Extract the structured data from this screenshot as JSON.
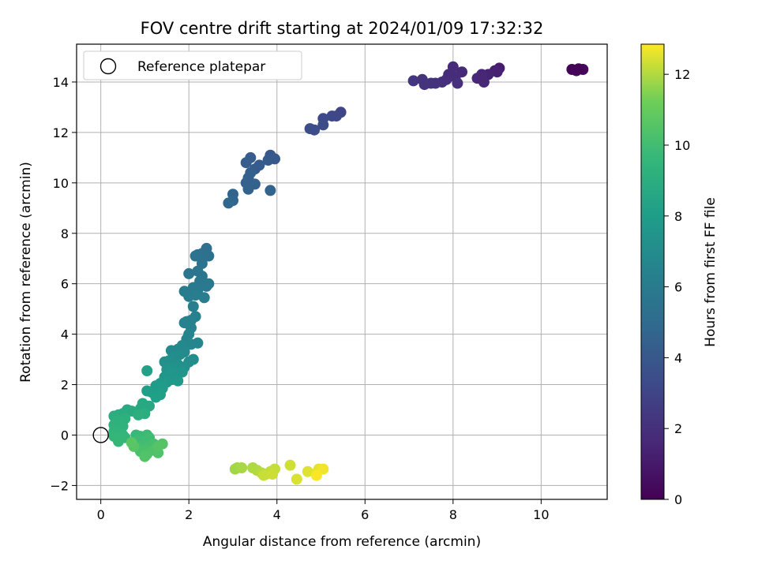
{
  "chart_data": {
    "type": "scatter",
    "title": "FOV centre drift starting at 2024/01/09 17:32:32",
    "xlabel": "Angular distance from reference (arcmin)",
    "ylabel": "Rotation from reference (arcmin)",
    "xlim": [
      -0.55,
      11.5
    ],
    "ylim": [
      -2.55,
      15.5
    ],
    "xticks": [
      0,
      2,
      4,
      6,
      8,
      10
    ],
    "yticks": [
      -2,
      0,
      2,
      4,
      6,
      8,
      10,
      12,
      14
    ],
    "grid": true,
    "legend": {
      "position": "top-left",
      "entries": [
        "Reference platepar"
      ]
    },
    "reference_point": {
      "x": 0,
      "y": 0
    },
    "colorbar": {
      "label": "Hours from first FF file",
      "colormap": "viridis",
      "min": 0,
      "max": 12.85,
      "ticks": [
        0,
        2,
        4,
        6,
        8,
        10,
        12
      ]
    },
    "points": [
      {
        "x": 10.7,
        "y": 14.5,
        "h": 0.1
      },
      {
        "x": 10.8,
        "y": 14.45,
        "h": 0.2
      },
      {
        "x": 10.95,
        "y": 14.5,
        "h": 0.3
      },
      {
        "x": 10.85,
        "y": 14.52,
        "h": 0.15
      },
      {
        "x": 9.05,
        "y": 14.55,
        "h": 1.1
      },
      {
        "x": 8.95,
        "y": 14.45,
        "h": 1.2
      },
      {
        "x": 9.0,
        "y": 14.4,
        "h": 1.3
      },
      {
        "x": 8.8,
        "y": 14.3,
        "h": 1.4
      },
      {
        "x": 8.65,
        "y": 14.3,
        "h": 1.5
      },
      {
        "x": 8.55,
        "y": 14.15,
        "h": 1.6
      },
      {
        "x": 8.7,
        "y": 14.0,
        "h": 1.65
      },
      {
        "x": 8.65,
        "y": 14.2,
        "h": 1.55
      },
      {
        "x": 8.2,
        "y": 14.4,
        "h": 1.7
      },
      {
        "x": 8.0,
        "y": 14.6,
        "h": 1.75
      },
      {
        "x": 8.05,
        "y": 14.2,
        "h": 1.8
      },
      {
        "x": 7.9,
        "y": 14.3,
        "h": 1.85
      },
      {
        "x": 7.85,
        "y": 14.1,
        "h": 1.9
      },
      {
        "x": 8.1,
        "y": 13.95,
        "h": 1.95
      },
      {
        "x": 7.75,
        "y": 14.0,
        "h": 2.0
      },
      {
        "x": 7.6,
        "y": 13.95,
        "h": 2.05
      },
      {
        "x": 7.5,
        "y": 13.95,
        "h": 2.1
      },
      {
        "x": 7.35,
        "y": 13.9,
        "h": 2.15
      },
      {
        "x": 7.3,
        "y": 14.1,
        "h": 2.2
      },
      {
        "x": 7.1,
        "y": 14.05,
        "h": 2.25
      },
      {
        "x": 5.45,
        "y": 12.8,
        "h": 3.0
      },
      {
        "x": 5.35,
        "y": 12.65,
        "h": 3.1
      },
      {
        "x": 5.25,
        "y": 12.65,
        "h": 3.15
      },
      {
        "x": 5.05,
        "y": 12.55,
        "h": 3.2
      },
      {
        "x": 5.05,
        "y": 12.3,
        "h": 3.3
      },
      {
        "x": 4.85,
        "y": 12.1,
        "h": 3.4
      },
      {
        "x": 4.75,
        "y": 12.15,
        "h": 3.45
      },
      {
        "x": 3.85,
        "y": 11.1,
        "h": 4.0
      },
      {
        "x": 3.95,
        "y": 10.95,
        "h": 4.05
      },
      {
        "x": 3.8,
        "y": 10.9,
        "h": 4.1
      },
      {
        "x": 3.6,
        "y": 10.7,
        "h": 4.15
      },
      {
        "x": 3.5,
        "y": 10.55,
        "h": 4.2
      },
      {
        "x": 3.4,
        "y": 11.0,
        "h": 4.25
      },
      {
        "x": 3.3,
        "y": 10.8,
        "h": 4.3
      },
      {
        "x": 3.4,
        "y": 10.4,
        "h": 4.35
      },
      {
        "x": 3.35,
        "y": 10.2,
        "h": 4.4
      },
      {
        "x": 3.3,
        "y": 10.0,
        "h": 4.45
      },
      {
        "x": 3.5,
        "y": 9.95,
        "h": 4.5
      },
      {
        "x": 3.35,
        "y": 9.75,
        "h": 4.55
      },
      {
        "x": 3.85,
        "y": 9.7,
        "h": 4.6
      },
      {
        "x": 3.0,
        "y": 9.55,
        "h": 4.65
      },
      {
        "x": 3.0,
        "y": 9.3,
        "h": 4.7
      },
      {
        "x": 2.9,
        "y": 9.2,
        "h": 4.75
      },
      {
        "x": 2.4,
        "y": 7.4,
        "h": 5.3
      },
      {
        "x": 2.45,
        "y": 7.1,
        "h": 5.35
      },
      {
        "x": 2.3,
        "y": 7.2,
        "h": 5.4
      },
      {
        "x": 2.2,
        "y": 7.15,
        "h": 5.45
      },
      {
        "x": 2.15,
        "y": 7.1,
        "h": 5.5
      },
      {
        "x": 2.3,
        "y": 6.8,
        "h": 5.55
      },
      {
        "x": 2.2,
        "y": 6.5,
        "h": 5.6
      },
      {
        "x": 2.3,
        "y": 6.3,
        "h": 5.65
      },
      {
        "x": 2.0,
        "y": 6.4,
        "h": 5.7
      },
      {
        "x": 2.25,
        "y": 6.1,
        "h": 5.75
      },
      {
        "x": 2.45,
        "y": 6.0,
        "h": 5.8
      },
      {
        "x": 2.4,
        "y": 5.9,
        "h": 5.85
      },
      {
        "x": 2.1,
        "y": 5.85,
        "h": 5.9
      },
      {
        "x": 2.2,
        "y": 5.75,
        "h": 5.95
      },
      {
        "x": 1.9,
        "y": 5.7,
        "h": 6.0
      },
      {
        "x": 2.0,
        "y": 5.5,
        "h": 6.05
      },
      {
        "x": 2.15,
        "y": 5.55,
        "h": 6.1
      },
      {
        "x": 2.35,
        "y": 5.45,
        "h": 6.15
      },
      {
        "x": 2.1,
        "y": 5.1,
        "h": 6.2
      },
      {
        "x": 2.15,
        "y": 4.7,
        "h": 6.3
      },
      {
        "x": 2.05,
        "y": 4.55,
        "h": 6.35
      },
      {
        "x": 1.95,
        "y": 4.5,
        "h": 6.4
      },
      {
        "x": 1.9,
        "y": 4.45,
        "h": 6.45
      },
      {
        "x": 2.05,
        "y": 4.25,
        "h": 6.5
      },
      {
        "x": 2.0,
        "y": 4.0,
        "h": 6.55
      },
      {
        "x": 1.95,
        "y": 3.8,
        "h": 6.6
      },
      {
        "x": 2.2,
        "y": 3.65,
        "h": 6.65
      },
      {
        "x": 2.05,
        "y": 3.6,
        "h": 6.7
      },
      {
        "x": 1.85,
        "y": 3.55,
        "h": 6.75
      },
      {
        "x": 1.75,
        "y": 3.4,
        "h": 6.8
      },
      {
        "x": 1.6,
        "y": 3.35,
        "h": 6.85
      },
      {
        "x": 1.9,
        "y": 3.3,
        "h": 6.9
      },
      {
        "x": 1.8,
        "y": 3.2,
        "h": 6.95
      },
      {
        "x": 1.65,
        "y": 3.1,
        "h": 7.0
      },
      {
        "x": 2.1,
        "y": 3.0,
        "h": 7.05
      },
      {
        "x": 2.0,
        "y": 2.9,
        "h": 7.1
      },
      {
        "x": 1.55,
        "y": 2.95,
        "h": 7.15
      },
      {
        "x": 1.45,
        "y": 2.9,
        "h": 7.2
      },
      {
        "x": 1.75,
        "y": 2.8,
        "h": 7.25
      },
      {
        "x": 1.9,
        "y": 2.7,
        "h": 7.3
      },
      {
        "x": 1.6,
        "y": 2.7,
        "h": 7.35
      },
      {
        "x": 1.5,
        "y": 2.6,
        "h": 7.4
      },
      {
        "x": 1.85,
        "y": 2.5,
        "h": 7.45
      },
      {
        "x": 1.7,
        "y": 2.45,
        "h": 7.5
      },
      {
        "x": 1.55,
        "y": 2.4,
        "h": 7.55
      },
      {
        "x": 1.45,
        "y": 2.3,
        "h": 7.6
      },
      {
        "x": 1.6,
        "y": 2.2,
        "h": 7.65
      },
      {
        "x": 1.75,
        "y": 2.15,
        "h": 7.7
      },
      {
        "x": 1.5,
        "y": 2.1,
        "h": 7.75
      },
      {
        "x": 1.35,
        "y": 2.05,
        "h": 7.8
      },
      {
        "x": 1.25,
        "y": 1.95,
        "h": 7.85
      },
      {
        "x": 1.4,
        "y": 1.85,
        "h": 7.9
      },
      {
        "x": 1.3,
        "y": 1.8,
        "h": 7.95
      },
      {
        "x": 1.15,
        "y": 1.7,
        "h": 8.0
      },
      {
        "x": 1.05,
        "y": 1.75,
        "h": 8.05
      },
      {
        "x": 1.35,
        "y": 1.6,
        "h": 8.1
      },
      {
        "x": 1.25,
        "y": 1.5,
        "h": 8.15
      },
      {
        "x": 1.05,
        "y": 2.55,
        "h": 8.2
      },
      {
        "x": 1.1,
        "y": 1.15,
        "h": 8.6
      },
      {
        "x": 0.95,
        "y": 1.25,
        "h": 8.65
      },
      {
        "x": 0.9,
        "y": 1.05,
        "h": 8.7
      },
      {
        "x": 0.6,
        "y": 1.0,
        "h": 8.75
      },
      {
        "x": 0.7,
        "y": 0.95,
        "h": 8.8
      },
      {
        "x": 0.5,
        "y": 0.85,
        "h": 8.85
      },
      {
        "x": 0.4,
        "y": 0.8,
        "h": 8.9
      },
      {
        "x": 0.3,
        "y": 0.75,
        "h": 8.95
      },
      {
        "x": 1.0,
        "y": 0.85,
        "h": 9.0
      },
      {
        "x": 0.85,
        "y": 0.8,
        "h": 9.05
      },
      {
        "x": 0.55,
        "y": 0.65,
        "h": 9.1
      },
      {
        "x": 0.35,
        "y": 0.6,
        "h": 9.15
      },
      {
        "x": 0.45,
        "y": 0.5,
        "h": 9.2
      },
      {
        "x": 0.3,
        "y": 0.4,
        "h": 9.25
      },
      {
        "x": 0.5,
        "y": 0.35,
        "h": 9.3
      },
      {
        "x": 0.3,
        "y": 0.15,
        "h": 9.35
      },
      {
        "x": 0.4,
        "y": 0.05,
        "h": 9.4
      },
      {
        "x": 0.5,
        "y": 0.0,
        "h": 9.45
      },
      {
        "x": 0.3,
        "y": -0.05,
        "h": 9.5
      },
      {
        "x": 0.55,
        "y": -0.1,
        "h": 9.55
      },
      {
        "x": 0.4,
        "y": -0.25,
        "h": 9.6
      },
      {
        "x": 0.8,
        "y": 0.0,
        "h": 9.7
      },
      {
        "x": 0.9,
        "y": -0.05,
        "h": 9.75
      },
      {
        "x": 1.05,
        "y": 0.0,
        "h": 9.8
      },
      {
        "x": 0.85,
        "y": -0.2,
        "h": 9.85
      },
      {
        "x": 1.0,
        "y": -0.25,
        "h": 9.9
      },
      {
        "x": 1.1,
        "y": -0.1,
        "h": 9.95
      },
      {
        "x": 0.95,
        "y": -0.4,
        "h": 10.0
      },
      {
        "x": 0.85,
        "y": -0.5,
        "h": 10.05
      },
      {
        "x": 1.1,
        "y": -0.45,
        "h": 10.1
      },
      {
        "x": 1.2,
        "y": -0.35,
        "h": 10.15
      },
      {
        "x": 1.0,
        "y": -0.6,
        "h": 10.2
      },
      {
        "x": 0.9,
        "y": -0.65,
        "h": 10.25
      },
      {
        "x": 1.05,
        "y": -0.75,
        "h": 10.3
      },
      {
        "x": 1.2,
        "y": -0.6,
        "h": 10.35
      },
      {
        "x": 1.3,
        "y": -0.7,
        "h": 10.4
      },
      {
        "x": 1.0,
        "y": -0.85,
        "h": 10.45
      },
      {
        "x": 1.4,
        "y": -0.35,
        "h": 10.5
      },
      {
        "x": 1.3,
        "y": -0.45,
        "h": 10.55
      },
      {
        "x": 0.75,
        "y": -0.45,
        "h": 10.6
      },
      {
        "x": 0.7,
        "y": -0.3,
        "h": 10.65
      },
      {
        "x": 3.05,
        "y": -1.35,
        "h": 11.8
      },
      {
        "x": 3.1,
        "y": -1.3,
        "h": 11.85
      },
      {
        "x": 3.2,
        "y": -1.3,
        "h": 11.9
      },
      {
        "x": 3.45,
        "y": -1.3,
        "h": 11.95
      },
      {
        "x": 3.55,
        "y": -1.4,
        "h": 12.0
      },
      {
        "x": 3.65,
        "y": -1.5,
        "h": 12.05
      },
      {
        "x": 3.75,
        "y": -1.55,
        "h": 12.1
      },
      {
        "x": 3.85,
        "y": -1.45,
        "h": 12.15
      },
      {
        "x": 3.95,
        "y": -1.35,
        "h": 12.2
      },
      {
        "x": 3.7,
        "y": -1.6,
        "h": 12.25
      },
      {
        "x": 3.9,
        "y": -1.55,
        "h": 12.3
      },
      {
        "x": 4.3,
        "y": -1.2,
        "h": 12.35
      },
      {
        "x": 4.45,
        "y": -1.75,
        "h": 12.45
      },
      {
        "x": 4.7,
        "y": -1.45,
        "h": 12.5
      },
      {
        "x": 4.9,
        "y": -1.5,
        "h": 12.55
      },
      {
        "x": 4.95,
        "y": -1.35,
        "h": 12.6
      },
      {
        "x": 5.05,
        "y": -1.35,
        "h": 12.7
      },
      {
        "x": 4.9,
        "y": -1.6,
        "h": 12.8
      }
    ]
  }
}
